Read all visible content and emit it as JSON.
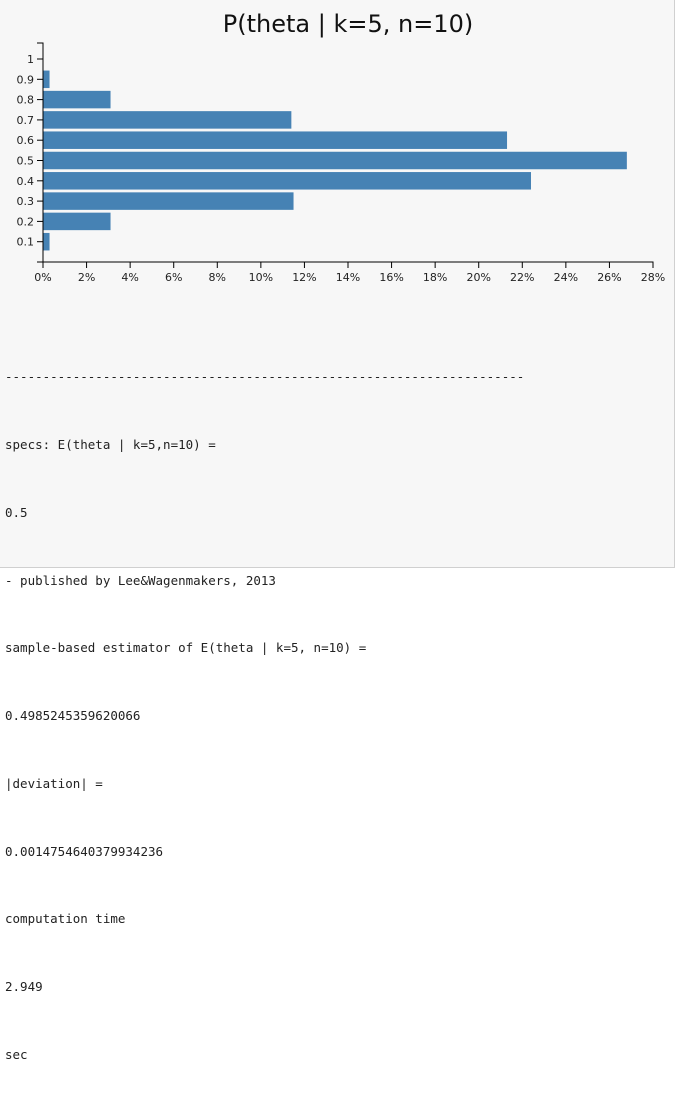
{
  "chart_data": {
    "type": "bar",
    "orientation": "horizontal",
    "title": "P(theta | k=5, n=10)",
    "categories": [
      "0.1",
      "0.2",
      "0.3",
      "0.4",
      "0.5",
      "0.6",
      "0.7",
      "0.8",
      "0.9",
      "1"
    ],
    "values": [
      0.3,
      3.1,
      11.5,
      22.4,
      26.8,
      21.3,
      11.4,
      3.1,
      0.3,
      0
    ],
    "x_ticks": [
      "0%",
      "2%",
      "4%",
      "6%",
      "8%",
      "10%",
      "12%",
      "14%",
      "16%",
      "18%",
      "20%",
      "22%",
      "24%",
      "26%",
      "28%"
    ],
    "xlim": [
      0,
      28
    ],
    "xlabel": "",
    "ylabel": "",
    "bar_color": "#4682b4",
    "grid": false
  },
  "output": {
    "separator": "---------------------------------------------------------------------",
    "lines": [
      "specs: E(theta | k=5,n=10) =",
      "0.5",
      "- published by Lee&Wagenmakers, 2013",
      "sample-based estimator of E(theta | k=5, n=10) =",
      "0.4985245359620066",
      "|deviation| =",
      "0.0014754640379934236",
      "computation time",
      "2.949",
      "sec"
    ]
  }
}
